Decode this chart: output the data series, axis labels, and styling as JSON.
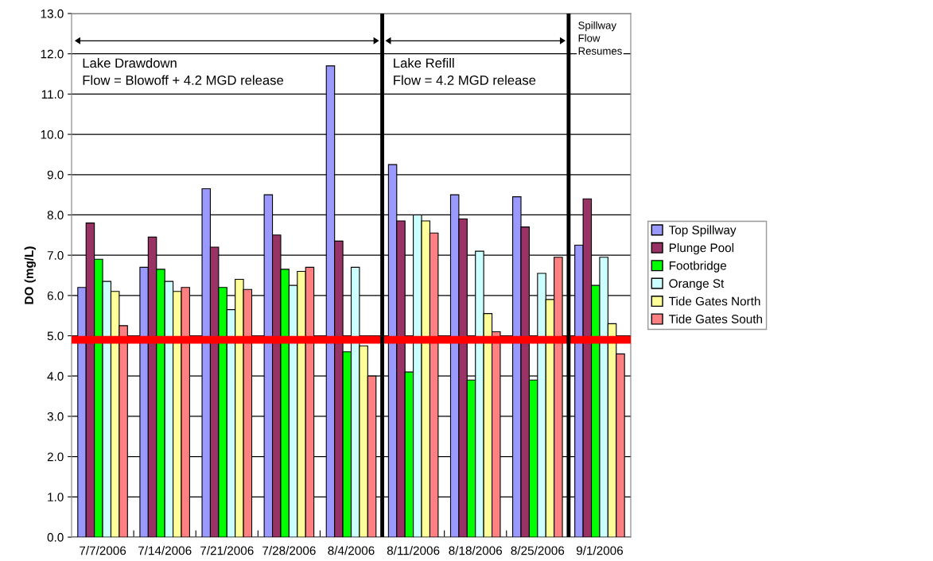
{
  "chart_data": {
    "type": "bar",
    "ylabel": "DO (mg/L)",
    "categories": [
      "7/7/2006",
      "7/14/2006",
      "7/21/2006",
      "7/28/2006",
      "8/4/2006",
      "8/11/2006",
      "8/18/2006",
      "8/25/2006",
      "9/1/2006"
    ],
    "series": [
      {
        "name": "Top Spillway",
        "color": "#9999ff",
        "values": [
          6.2,
          6.7,
          8.65,
          8.5,
          11.7,
          9.25,
          8.5,
          8.45,
          7.25
        ]
      },
      {
        "name": "Plunge Pool",
        "color": "#993366",
        "values": [
          7.8,
          7.45,
          7.2,
          7.5,
          7.35,
          7.85,
          7.9,
          7.7,
          8.4
        ]
      },
      {
        "name": "Footbridge",
        "color": "#00ff00",
        "values": [
          6.9,
          6.65,
          6.2,
          6.65,
          4.6,
          4.1,
          3.9,
          3.9,
          6.25
        ]
      },
      {
        "name": "Orange St",
        "color": "#ccffff",
        "values": [
          6.35,
          6.35,
          5.65,
          6.25,
          6.7,
          8.0,
          7.1,
          6.55,
          6.95
        ]
      },
      {
        "name": "Tide Gates North",
        "color": "#ffff99",
        "values": [
          6.1,
          6.1,
          6.4,
          6.6,
          4.75,
          7.85,
          5.55,
          5.9,
          5.3
        ]
      },
      {
        "name": "Tide Gates South",
        "color": "#ff8080",
        "values": [
          5.25,
          6.2,
          6.15,
          6.7,
          4.0,
          7.55,
          5.1,
          6.95,
          4.55
        ]
      }
    ],
    "ylim": [
      0,
      13
    ],
    "yticks": [
      {
        "value": 0,
        "label": "0.0"
      },
      {
        "value": 1,
        "label": "1.0"
      },
      {
        "value": 2,
        "label": "2.0"
      },
      {
        "value": 3,
        "label": "3.0"
      },
      {
        "value": 4,
        "label": "4.0"
      },
      {
        "value": 5,
        "label": "5.0"
      },
      {
        "value": 6,
        "label": "6.0"
      },
      {
        "value": 7,
        "label": "7.0"
      },
      {
        "value": 8,
        "label": "8.0"
      },
      {
        "value": 9,
        "label": "9.0"
      },
      {
        "value": 10,
        "label": "10.0"
      },
      {
        "value": 11,
        "label": "11.0"
      },
      {
        "value": 12,
        "label": "12.0"
      },
      {
        "value": 13,
        "label": "13.0"
      }
    ],
    "grid": "y",
    "legend": "right",
    "ref_lines": [
      {
        "axis": "y",
        "value": 4.9,
        "color": "#ff0000"
      }
    ],
    "annotations": [
      "Lake Drawdown\nFlow = Blowoff + 4.2 MGD release",
      "Lake Refill\nFlow = 4.2 MGD release",
      "Spillway\nFlow\nResumes"
    ]
  }
}
